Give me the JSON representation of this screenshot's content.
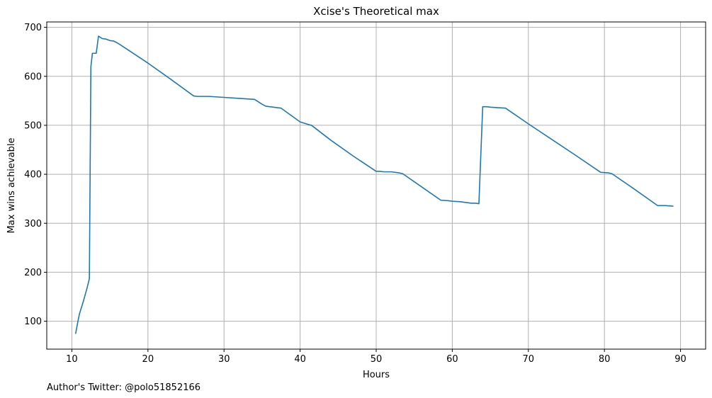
{
  "footer": {
    "text": "Author's Twitter: @polo51852166"
  },
  "chart_data": {
    "type": "line",
    "title": "Xcise's Theoretical max",
    "xlabel": "Hours",
    "ylabel": "Max wins achievable",
    "xlim": [
      6.7,
      93.3
    ],
    "ylim": [
      43,
      711
    ],
    "xticks": [
      10,
      20,
      30,
      40,
      50,
      60,
      70,
      80,
      90
    ],
    "yticks": [
      100,
      200,
      300,
      400,
      500,
      600,
      700
    ],
    "grid": true,
    "line_color": "#1f77b4",
    "series": [
      {
        "x": [
          10.5,
          10.8,
          11.0,
          11.5,
          12.0,
          12.3,
          12.5,
          12.7,
          13.0,
          13.2,
          13.5,
          13.8,
          14.0,
          14.5,
          15.0,
          15.5,
          16.0,
          16.5,
          20.0,
          23.0,
          26.0,
          26.5,
          27.0,
          28.0,
          30.0,
          32.0,
          34.0,
          34.5,
          35.0,
          35.5,
          36.0,
          37.0,
          37.5,
          40.0,
          41.0,
          41.5,
          44.0,
          47.0,
          50.0,
          50.5,
          51.0,
          52.0,
          53.0,
          53.5,
          56.0,
          58.5,
          59.5,
          60.0,
          61.0,
          62.0,
          62.5,
          63.0,
          63.5,
          64.0,
          64.5,
          65.0,
          66.0,
          67.0,
          70.0,
          73.0,
          76.0,
          79.5,
          80.5,
          81.0,
          84.0,
          87.0,
          88.0,
          89.0
        ],
        "y": [
          75,
          100,
          115,
          140,
          168,
          187,
          620,
          647,
          647,
          647,
          682,
          679,
          677,
          676,
          673,
          672,
          668,
          663,
          627,
          594,
          560,
          559,
          559,
          559,
          557,
          555,
          553,
          548,
          543,
          539,
          538,
          536,
          535,
          507,
          502,
          500,
          470,
          437,
          406,
          406,
          405,
          405,
          403,
          401,
          374,
          347,
          346,
          345,
          344,
          342,
          341,
          341,
          340,
          538,
          538,
          537,
          536,
          535,
          503,
          472,
          441,
          404,
          403,
          401,
          369,
          336,
          336,
          335
        ]
      }
    ]
  }
}
